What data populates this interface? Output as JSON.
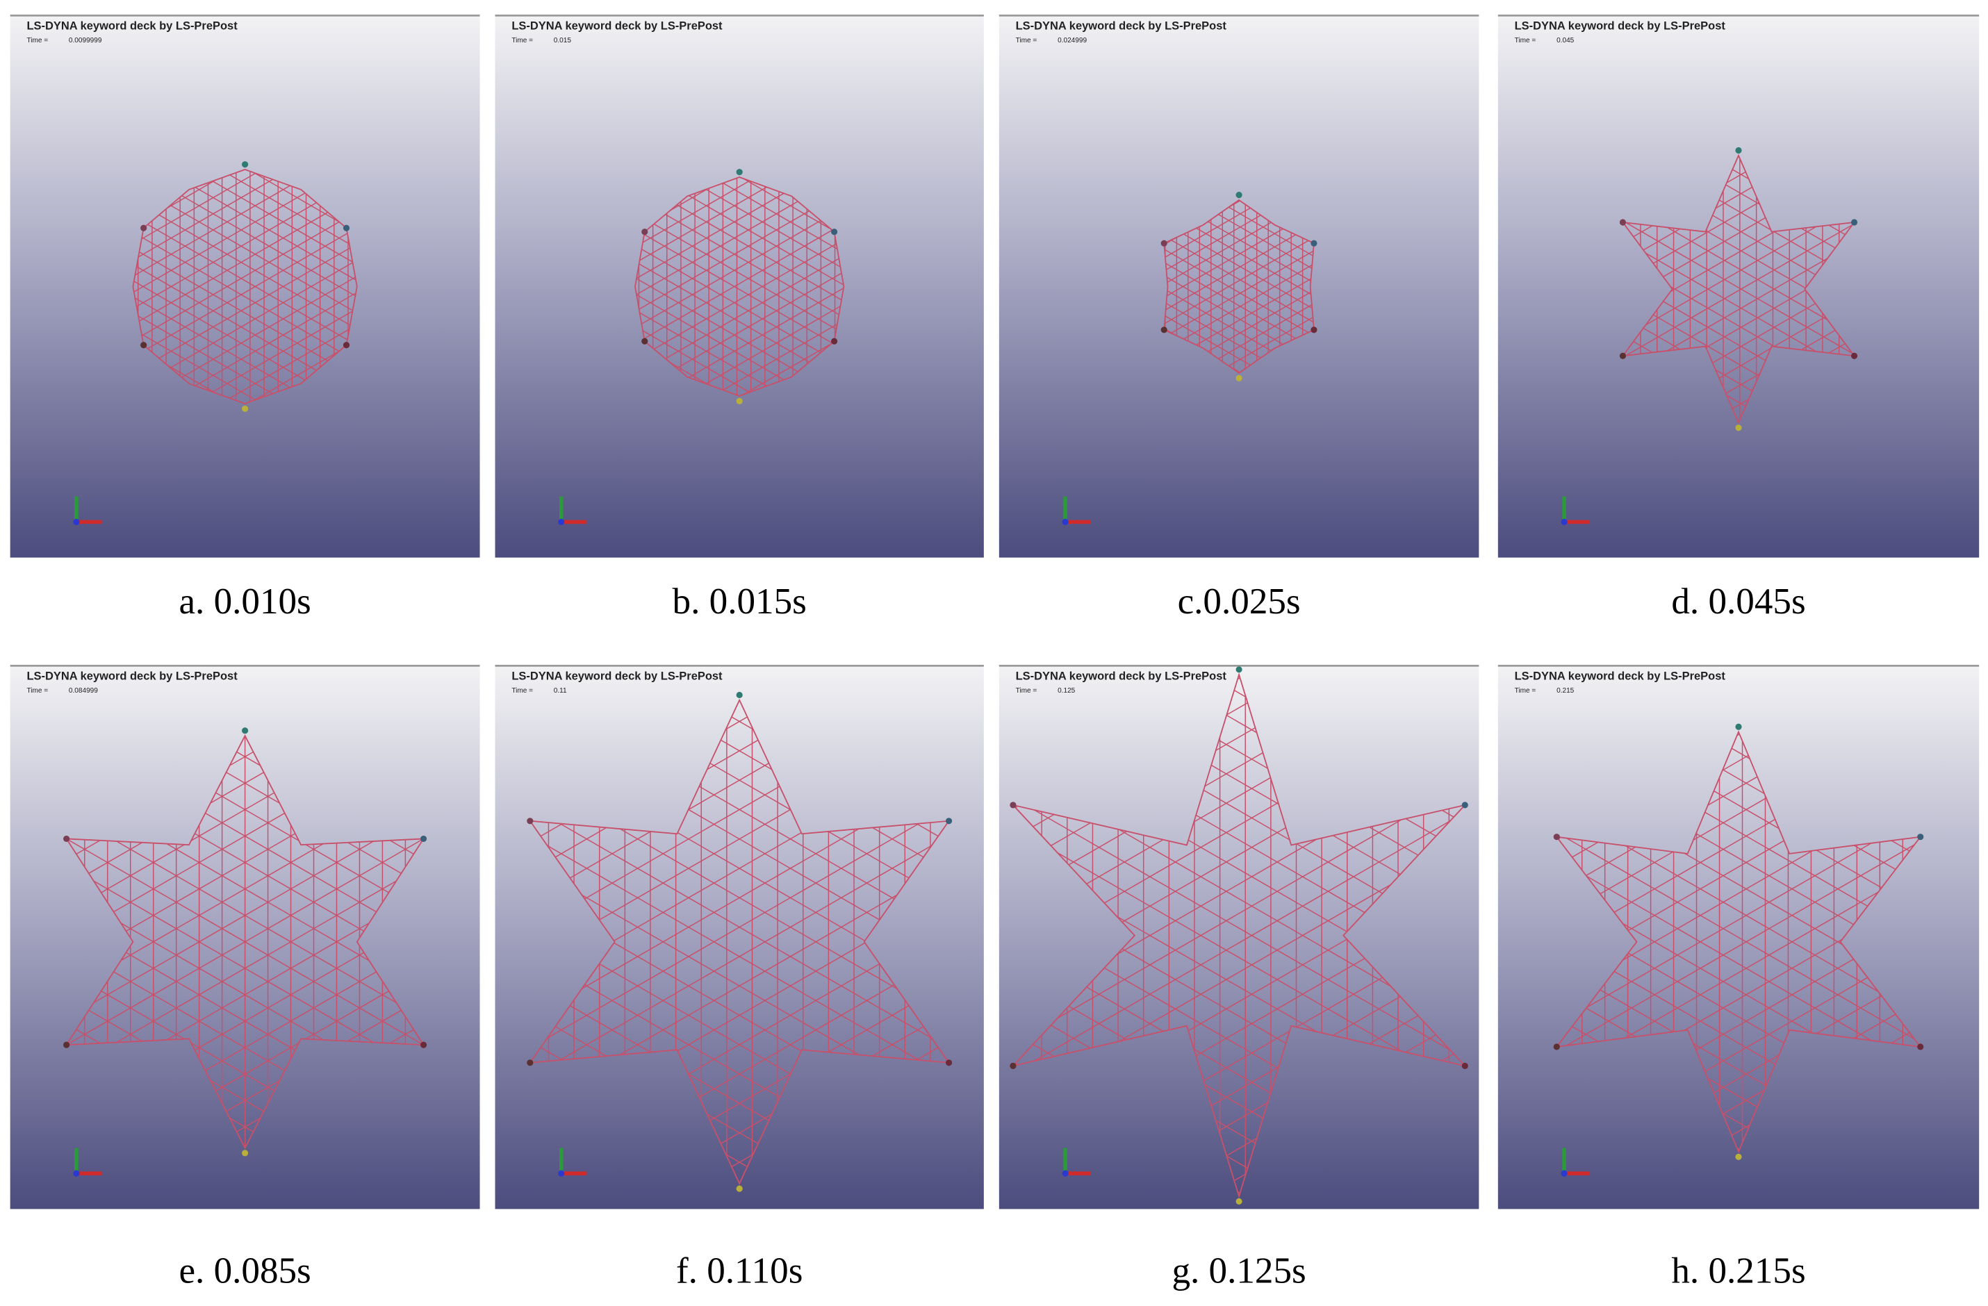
{
  "panels": [
    {
      "header": "LS-DYNA keyword deck by LS-PrePost",
      "time_label": "Time =",
      "time_value": "0.0099999",
      "caption": "a. 0.010s"
    },
    {
      "header": "LS-DYNA keyword deck by LS-PrePost",
      "time_label": "Time =",
      "time_value": "0.015",
      "caption": "b. 0.015s"
    },
    {
      "header": "LS-DYNA keyword deck by LS-PrePost",
      "time_label": "Time =",
      "time_value": "0.024999",
      "caption": "c.0.025s"
    },
    {
      "header": "LS-DYNA keyword deck by LS-PrePost",
      "time_label": "Time =",
      "time_value": "0.045",
      "caption": "d. 0.045s"
    },
    {
      "header": "LS-DYNA keyword deck by LS-PrePost",
      "time_label": "Time =",
      "time_value": "0.084999",
      "caption": "e. 0.085s"
    },
    {
      "header": "LS-DYNA keyword deck by LS-PrePost",
      "time_label": "Time =",
      "time_value": "0.11",
      "caption": "f. 0.110s"
    },
    {
      "header": "LS-DYNA keyword deck by LS-PrePost",
      "time_label": "Time =",
      "time_value": "0.125",
      "caption": "g. 0.125s"
    },
    {
      "header": "LS-DYNA keyword deck by LS-PrePost",
      "time_label": "Time =",
      "time_value": "0.215",
      "caption": "h. 0.215s"
    }
  ]
}
